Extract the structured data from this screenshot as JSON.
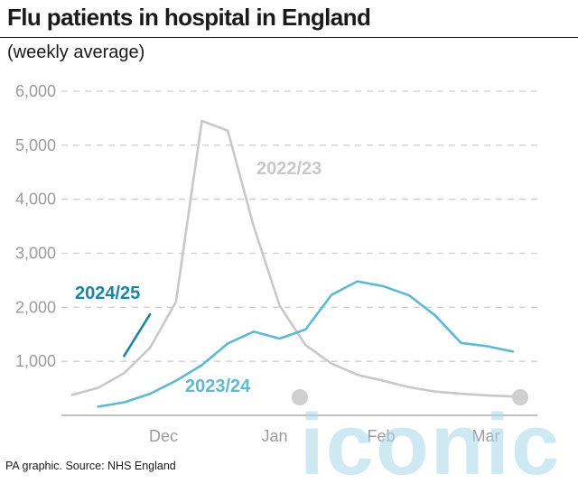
{
  "header": {
    "title": "Flu patients in hospital in England",
    "subtitle": "(weekly average)"
  },
  "footer": {
    "source": "PA graphic. Source: NHS England"
  },
  "watermark": {
    "text": "iconic"
  },
  "colors": {
    "s2022": "#c8c8c8",
    "s2023": "#5fb8d4",
    "s2024": "#1b86a3",
    "grid": "#cfcfcf",
    "axis": "#9b9b9b"
  },
  "chart_data": {
    "type": "line",
    "title": "Flu patients in hospital in England",
    "subtitle": "(weekly average)",
    "ylim": [
      0,
      6000
    ],
    "yticks": [
      1000,
      2000,
      3000,
      4000,
      5000,
      6000
    ],
    "ytick_labels": [
      "1,000",
      "2,000",
      "3,000",
      "4,000",
      "5,000",
      "6,000"
    ],
    "x_month_labels": [
      "Dec",
      "Jan",
      "Feb",
      "Mar"
    ],
    "grid": "horizontal dashed",
    "series": [
      {
        "name": "2022/23",
        "weeks": [
          0,
          1,
          2,
          3,
          4,
          5,
          6,
          7,
          8,
          9,
          10,
          11,
          12,
          13,
          14,
          15,
          16,
          17
        ],
        "values": [
          380,
          510,
          780,
          1250,
          2100,
          5450,
          5270,
          3500,
          2030,
          1300,
          960,
          750,
          640,
          520,
          440,
          400,
          370,
          350
        ]
      },
      {
        "name": "2023/24",
        "weeks": [
          1,
          2,
          3,
          4,
          5,
          6,
          7,
          8,
          9,
          10,
          11,
          12,
          13,
          14,
          15,
          16,
          17
        ],
        "values": [
          160,
          240,
          400,
          640,
          930,
          1330,
          1550,
          1420,
          1590,
          2230,
          2480,
          2390,
          2220,
          1850,
          1340,
          1280,
          1180
        ]
      },
      {
        "name": "2024/25",
        "weeks": [
          2,
          3
        ],
        "values": [
          1100,
          1870
        ]
      }
    ]
  }
}
